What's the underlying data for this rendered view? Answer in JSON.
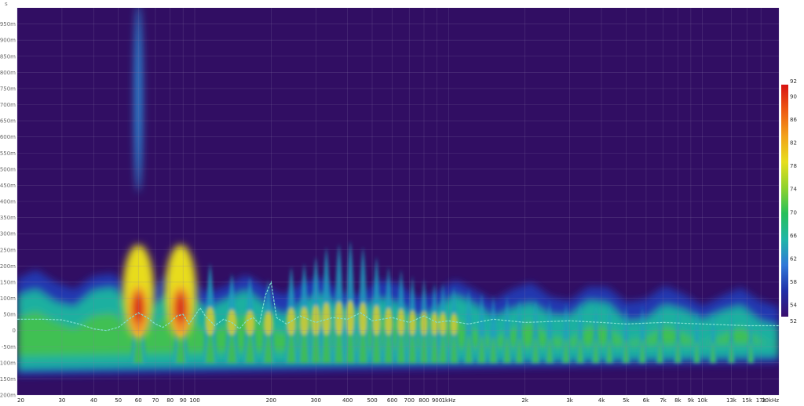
{
  "chart_data": {
    "type": "heatmap",
    "title": "",
    "xlabel": "",
    "ylabel": "",
    "x_scale": "log",
    "x_range_hz": [
      20,
      20000
    ],
    "y_range_s": [
      -0.2,
      1.0
    ],
    "y_unit_label": "s",
    "x_ticks": [
      {
        "value": 20,
        "label": "20"
      },
      {
        "value": 30,
        "label": "30"
      },
      {
        "value": 40,
        "label": "40"
      },
      {
        "value": 50,
        "label": "50"
      },
      {
        "value": 60,
        "label": "60"
      },
      {
        "value": 70,
        "label": "70"
      },
      {
        "value": 80,
        "label": "80"
      },
      {
        "value": 90,
        "label": "90"
      },
      {
        "value": 100,
        "label": "100"
      },
      {
        "value": 200,
        "label": "200"
      },
      {
        "value": 300,
        "label": "300"
      },
      {
        "value": 400,
        "label": "400"
      },
      {
        "value": 500,
        "label": "500"
      },
      {
        "value": 600,
        "label": "600"
      },
      {
        "value": 700,
        "label": "700"
      },
      {
        "value": 800,
        "label": "800"
      },
      {
        "value": 900,
        "label": "900"
      },
      {
        "value": 1000,
        "label": "1kHz"
      },
      {
        "value": 2000,
        "label": "2k"
      },
      {
        "value": 3000,
        "label": "3k"
      },
      {
        "value": 4000,
        "label": "4k"
      },
      {
        "value": 5000,
        "label": "5k"
      },
      {
        "value": 6000,
        "label": "6k"
      },
      {
        "value": 7000,
        "label": "7k"
      },
      {
        "value": 8000,
        "label": "8k"
      },
      {
        "value": 9000,
        "label": "9k"
      },
      {
        "value": 10000,
        "label": "10k"
      },
      {
        "value": 13000,
        "label": "13k"
      },
      {
        "value": 15000,
        "label": "15k"
      },
      {
        "value": 17000,
        "label": "17k"
      },
      {
        "value": 20000,
        "label": "20kHz"
      }
    ],
    "y_ticks": [
      {
        "value": 0.95,
        "label": "950m"
      },
      {
        "value": 0.9,
        "label": "900m"
      },
      {
        "value": 0.85,
        "label": "850m"
      },
      {
        "value": 0.8,
        "label": "800m"
      },
      {
        "value": 0.75,
        "label": "750m"
      },
      {
        "value": 0.7,
        "label": "700m"
      },
      {
        "value": 0.65,
        "label": "650m"
      },
      {
        "value": 0.6,
        "label": "600m"
      },
      {
        "value": 0.55,
        "label": "550m"
      },
      {
        "value": 0.5,
        "label": "500m"
      },
      {
        "value": 0.45,
        "label": "450m"
      },
      {
        "value": 0.4,
        "label": "400m"
      },
      {
        "value": 0.35,
        "label": "350m"
      },
      {
        "value": 0.3,
        "label": "300m"
      },
      {
        "value": 0.25,
        "label": "250m"
      },
      {
        "value": 0.2,
        "label": "200m"
      },
      {
        "value": 0.15,
        "label": "150m"
      },
      {
        "value": 0.1,
        "label": "100m"
      },
      {
        "value": 0.05,
        "label": "50m"
      },
      {
        "value": 0.0,
        "label": "0"
      },
      {
        "value": -0.05,
        "label": "-50m"
      },
      {
        "value": -0.1,
        "label": "-100m"
      },
      {
        "value": -0.15,
        "label": "-150m"
      },
      {
        "value": -0.2,
        "label": "-200m"
      }
    ],
    "colorbar": {
      "range": [
        52,
        92
      ],
      "ticks": [
        "92",
        "90",
        "86",
        "82",
        "78",
        "74",
        "70",
        "66",
        "62",
        "58",
        "54",
        "52"
      ],
      "colors": [
        "#3a0f6e",
        "#1f2fa8",
        "#2f78d8",
        "#1fb6a8",
        "#27c05a",
        "#8fd22e",
        "#e6de1e",
        "#f2a21a",
        "#ee5a12",
        "#d81212"
      ]
    },
    "background_color": "#310e63",
    "grid": true,
    "peak_frequencies_hz": [
      60,
      88,
      115,
      140,
      165,
      195,
      240,
      270,
      300,
      330,
      370,
      410,
      460,
      520,
      580,
      650,
      720,
      800,
      880,
      950,
      1050,
      1200,
      1350,
      1500,
      1700,
      1900,
      2200,
      2500,
      2900,
      3300,
      3800,
      4300,
      5000,
      5800,
      6800,
      8000,
      9500,
      11000,
      13000,
      15500
    ],
    "peak_decay_ms": [
      240,
      250,
      210,
      180,
      170,
      160,
      200,
      210,
      230,
      260,
      270,
      280,
      260,
      230,
      200,
      190,
      170,
      160,
      150,
      150,
      140,
      130,
      120,
      110,
      110,
      100,
      100,
      95,
      90,
      90,
      85,
      85,
      80,
      80,
      75,
      70,
      65,
      60,
      55,
      50
    ],
    "ridge_line_ms": [
      {
        "f": 20,
        "t": 35
      },
      {
        "f": 25,
        "t": 35
      },
      {
        "f": 30,
        "t": 33
      },
      {
        "f": 35,
        "t": 20
      },
      {
        "f": 40,
        "t": 5
      },
      {
        "f": 45,
        "t": 0
      },
      {
        "f": 50,
        "t": 10
      },
      {
        "f": 55,
        "t": 35
      },
      {
        "f": 60,
        "t": 55
      },
      {
        "f": 65,
        "t": 40
      },
      {
        "f": 70,
        "t": 20
      },
      {
        "f": 75,
        "t": 10
      },
      {
        "f": 80,
        "t": 25
      },
      {
        "f": 85,
        "t": 45
      },
      {
        "f": 90,
        "t": 50
      },
      {
        "f": 95,
        "t": 20
      },
      {
        "f": 100,
        "t": 45
      },
      {
        "f": 105,
        "t": 70
      },
      {
        "f": 110,
        "t": 45
      },
      {
        "f": 120,
        "t": 15
      },
      {
        "f": 130,
        "t": 35
      },
      {
        "f": 140,
        "t": 25
      },
      {
        "f": 150,
        "t": 5
      },
      {
        "f": 160,
        "t": 30
      },
      {
        "f": 170,
        "t": 40
      },
      {
        "f": 180,
        "t": 20
      },
      {
        "f": 190,
        "t": 110
      },
      {
        "f": 200,
        "t": 150
      },
      {
        "f": 210,
        "t": 40
      },
      {
        "f": 230,
        "t": 20
      },
      {
        "f": 260,
        "t": 45
      },
      {
        "f": 300,
        "t": 25
      },
      {
        "f": 350,
        "t": 40
      },
      {
        "f": 400,
        "t": 35
      },
      {
        "f": 450,
        "t": 55
      },
      {
        "f": 500,
        "t": 30
      },
      {
        "f": 600,
        "t": 40
      },
      {
        "f": 700,
        "t": 25
      },
      {
        "f": 800,
        "t": 45
      },
      {
        "f": 900,
        "t": 25
      },
      {
        "f": 1000,
        "t": 30
      },
      {
        "f": 1200,
        "t": 20
      },
      {
        "f": 1500,
        "t": 35
      },
      {
        "f": 2000,
        "t": 25
      },
      {
        "f": 3000,
        "t": 30
      },
      {
        "f": 4000,
        "t": 25
      },
      {
        "f": 5000,
        "t": 20
      },
      {
        "f": 7000,
        "t": 25
      },
      {
        "f": 10000,
        "t": 20
      },
      {
        "f": 15000,
        "t": 15
      },
      {
        "f": 20000,
        "t": 15
      }
    ]
  }
}
